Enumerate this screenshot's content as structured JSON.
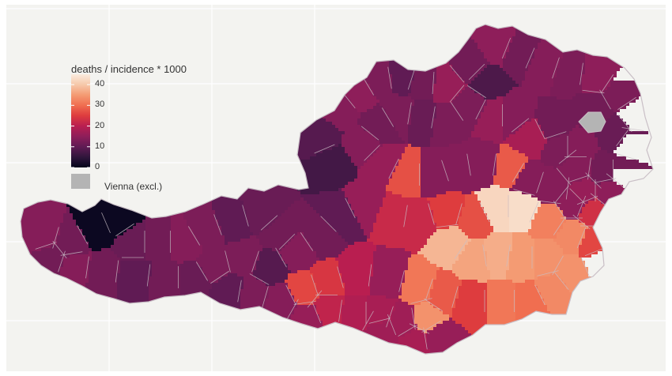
{
  "legend": {
    "title": "deaths / incidence * 1000",
    "ticks": [
      {
        "value": 40,
        "label": "40"
      },
      {
        "value": 30,
        "label": "30"
      },
      {
        "value": 20,
        "label": "20"
      },
      {
        "value": 10,
        "label": "10"
      },
      {
        "value": 0,
        "label": "0"
      }
    ],
    "range": [
      0,
      45
    ],
    "na_label": "Vienna (excl.)",
    "na_color": "#b4b4b4",
    "colormap": "rocket"
  },
  "chart_data": {
    "type": "choropleth",
    "region": "Austria districts",
    "value_label": "deaths / incidence * 1000",
    "range": [
      0,
      45
    ],
    "excluded": "Vienna",
    "map": {
      "background": "#f3f3f0",
      "border_color": "#c9bfc6"
    }
  }
}
